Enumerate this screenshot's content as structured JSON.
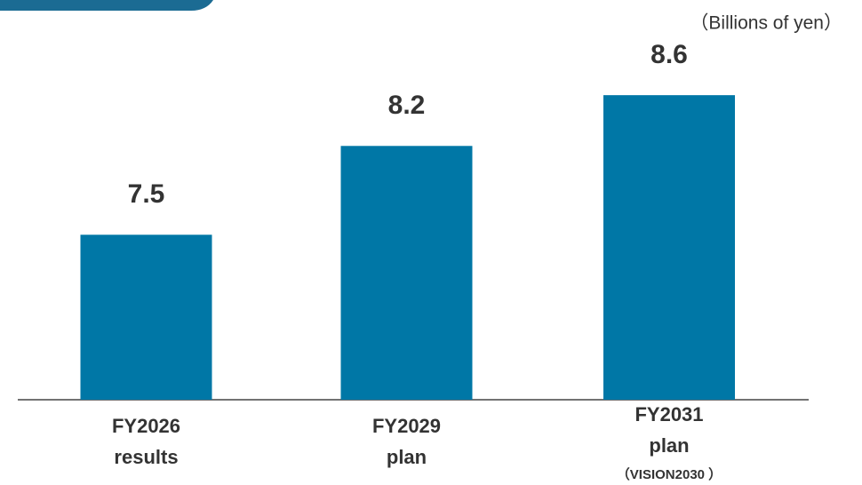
{
  "chart_data": {
    "type": "bar",
    "unit_label": "（Billions of yen）",
    "categories": [
      [
        "FY2026",
        "results"
      ],
      [
        "FY2029",
        "plan"
      ],
      [
        "FY2031",
        "plan",
        "（VISION2030 ）"
      ]
    ],
    "values": [
      7.5,
      8.2,
      8.6
    ],
    "color": "#0077a6",
    "ylim": [
      6.2,
      9.0
    ]
  }
}
